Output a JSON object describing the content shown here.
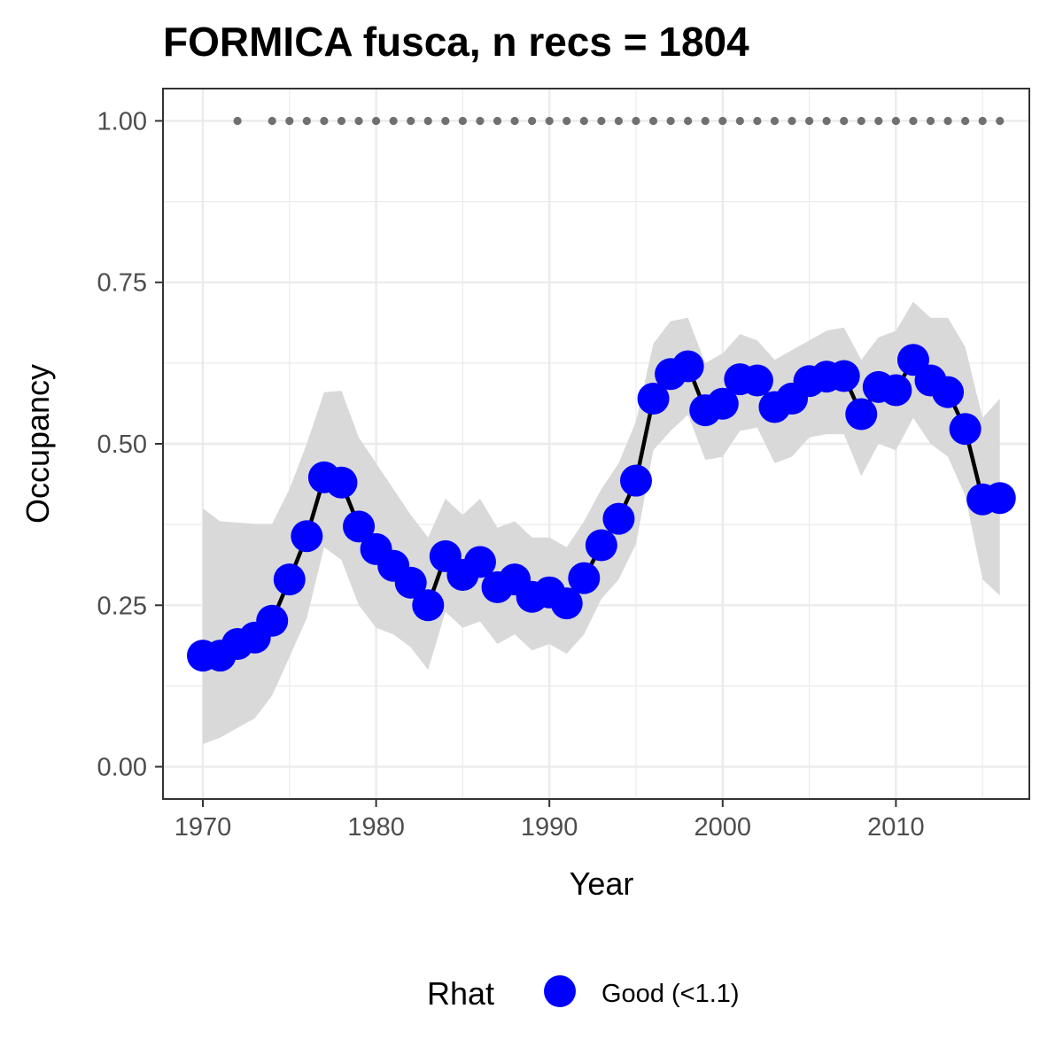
{
  "chart_data": {
    "type": "line",
    "title": "FORMICA fusca, n recs = 1804",
    "xlabel": "Year",
    "ylabel": "Occupancy",
    "xlim": [
      1967.7,
      2017.7
    ],
    "ylim": [
      -0.05,
      1.05
    ],
    "x_ticks": [
      1970,
      1980,
      1990,
      2000,
      2010
    ],
    "x_tick_labels": [
      "1970",
      "1980",
      "1990",
      "2000",
      "2010"
    ],
    "y_ticks": [
      0,
      0.25,
      0.5,
      0.75,
      1
    ],
    "y_tick_labels": [
      "0.00",
      "0.25",
      "0.50",
      "0.75",
      "1.00"
    ],
    "grid": true,
    "legend": {
      "title": "Rhat",
      "position": "bottom",
      "entries": [
        {
          "label": "Good (<1.1)",
          "color": "#0000ff"
        }
      ]
    },
    "colors": {
      "points": "#0000ff",
      "line": "#000000",
      "ribbon": "#d9d9d9",
      "record_dots": "#707070",
      "panel_border": "#333333",
      "grid": "#ebebeb"
    },
    "series": [
      {
        "kind": "occupancy",
        "x": [
          1970,
          1971,
          1972,
          1973,
          1974,
          1975,
          1976,
          1977,
          1978,
          1979,
          1980,
          1981,
          1982,
          1983,
          1984,
          1985,
          1986,
          1987,
          1988,
          1989,
          1990,
          1991,
          1992,
          1993,
          1994,
          1995,
          1996,
          1997,
          1998,
          1999,
          2000,
          2001,
          2002,
          2003,
          2004,
          2005,
          2006,
          2007,
          2008,
          2009,
          2010,
          2011,
          2012,
          2013,
          2014,
          2015,
          2016
        ],
        "y": [
          0.172,
          0.172,
          0.19,
          0.2,
          0.226,
          0.29,
          0.357,
          0.448,
          0.44,
          0.372,
          0.337,
          0.311,
          0.285,
          0.25,
          0.326,
          0.297,
          0.317,
          0.278,
          0.29,
          0.263,
          0.27,
          0.253,
          0.292,
          0.343,
          0.384,
          0.443,
          0.57,
          0.608,
          0.62,
          0.552,
          0.562,
          0.6,
          0.598,
          0.557,
          0.57,
          0.597,
          0.604,
          0.605,
          0.546,
          0.588,
          0.583,
          0.63,
          0.598,
          0.58,
          0.523,
          0.414,
          0.416
        ],
        "lower": [
          0.035,
          0.045,
          0.06,
          0.075,
          0.11,
          0.17,
          0.23,
          0.34,
          0.32,
          0.25,
          0.215,
          0.205,
          0.185,
          0.15,
          0.24,
          0.215,
          0.225,
          0.19,
          0.205,
          0.18,
          0.19,
          0.175,
          0.205,
          0.26,
          0.29,
          0.345,
          0.49,
          0.52,
          0.545,
          0.475,
          0.48,
          0.52,
          0.525,
          0.47,
          0.48,
          0.51,
          0.515,
          0.515,
          0.45,
          0.5,
          0.49,
          0.54,
          0.5,
          0.48,
          0.42,
          0.29,
          0.265
        ],
        "upper": [
          0.4,
          0.38,
          0.378,
          0.376,
          0.376,
          0.43,
          0.5,
          0.58,
          0.582,
          0.51,
          0.47,
          0.43,
          0.39,
          0.355,
          0.415,
          0.39,
          0.415,
          0.37,
          0.38,
          0.355,
          0.355,
          0.34,
          0.38,
          0.43,
          0.47,
          0.535,
          0.655,
          0.69,
          0.695,
          0.625,
          0.64,
          0.67,
          0.66,
          0.63,
          0.645,
          0.66,
          0.675,
          0.68,
          0.63,
          0.665,
          0.675,
          0.72,
          0.695,
          0.695,
          0.65,
          0.54,
          0.57
        ]
      },
      {
        "kind": "record_years",
        "y_value": 1.0,
        "x": [
          1972,
          1974,
          1975,
          1976,
          1977,
          1978,
          1979,
          1980,
          1981,
          1982,
          1983,
          1984,
          1985,
          1986,
          1987,
          1988,
          1989,
          1990,
          1991,
          1992,
          1993,
          1994,
          1995,
          1996,
          1997,
          1998,
          1999,
          2000,
          2001,
          2002,
          2003,
          2004,
          2005,
          2006,
          2007,
          2008,
          2009,
          2010,
          2011,
          2012,
          2013,
          2014,
          2015,
          2016
        ]
      }
    ]
  }
}
